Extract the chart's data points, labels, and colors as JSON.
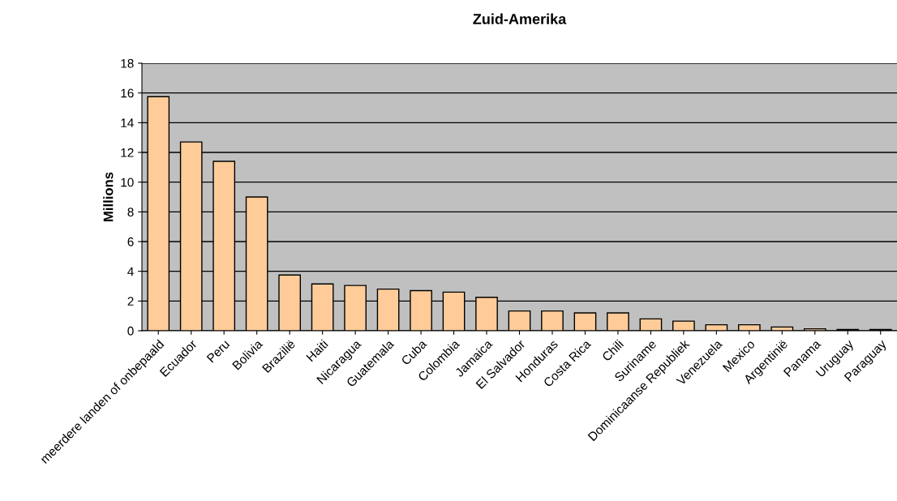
{
  "chart_data": {
    "type": "bar",
    "title": "Zuid-Amerika",
    "ylabel": "Millions",
    "categories": [
      "meerdere landen of onbepaald",
      "Ecuador",
      "Peru",
      "Bolivia",
      "Brazilië",
      "Haiti",
      "Nicaragua",
      "Guatemala",
      "Cuba",
      "Colombia",
      "Jamaica",
      "El Salvador",
      "Honduras",
      "Costa Rica",
      "Chili",
      "Suriname",
      "Dominicaanse Republiek",
      "Venezuela",
      "Mexico",
      "Argentinië",
      "Panama",
      "Uruguay",
      "Paraguay"
    ],
    "values": [
      15.75,
      12.7,
      11.4,
      9.0,
      3.75,
      3.15,
      3.05,
      2.8,
      2.7,
      2.6,
      2.25,
      1.33,
      1.33,
      1.2,
      1.2,
      0.8,
      0.65,
      0.4,
      0.4,
      0.25,
      0.13,
      0.08,
      0.08
    ],
    "color": "#ffcc99",
    "ylim": [
      0,
      18
    ],
    "yticks": [
      0,
      2,
      4,
      6,
      8,
      10,
      12,
      14,
      16,
      18
    ],
    "grid": "y"
  }
}
